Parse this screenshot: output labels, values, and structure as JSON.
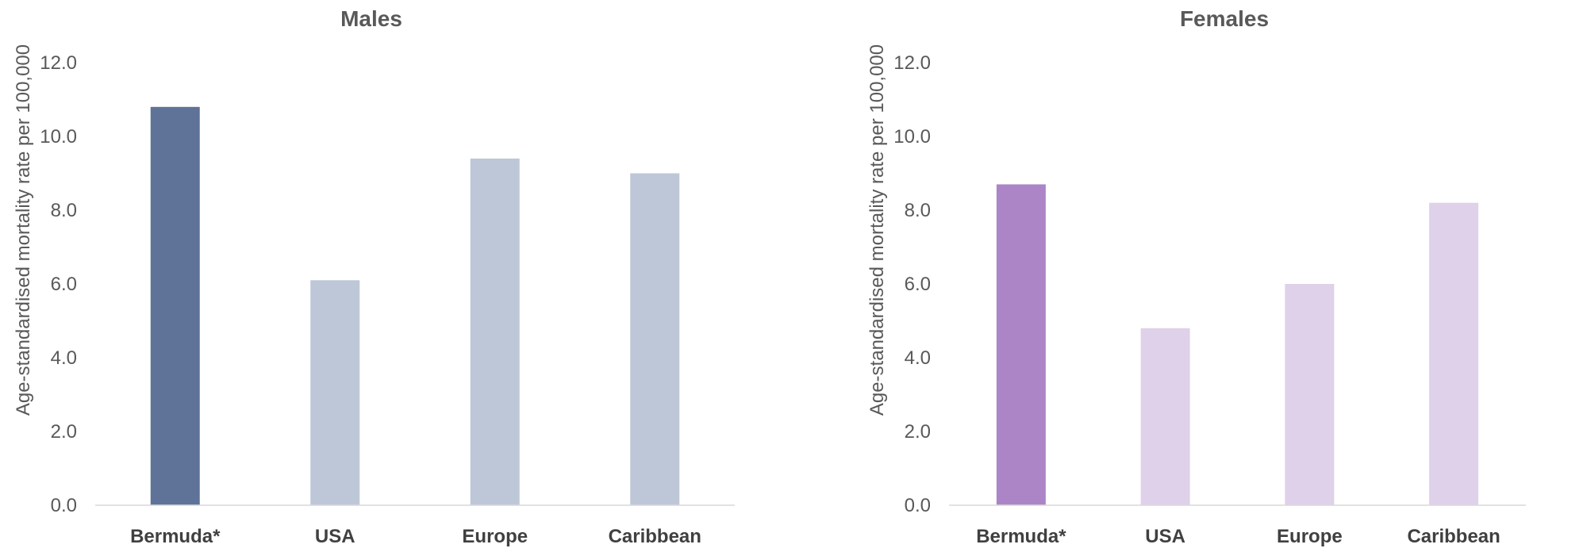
{
  "chart_data": [
    {
      "type": "bar",
      "title": "Males",
      "ylabel": "Age-standardised mortality rate per 100,000",
      "xlabel": "",
      "categories": [
        "Bermuda*",
        "USA",
        "Europe",
        "Caribbean"
      ],
      "values": [
        10.8,
        6.1,
        9.4,
        9.0
      ],
      "ylim": [
        0,
        12
      ],
      "yticks": [
        "0.0",
        "2.0",
        "4.0",
        "6.0",
        "8.0",
        "10.0",
        "12.0"
      ],
      "bar_colors": [
        "#5f7398",
        "#bdc7d8",
        "#bdc7d8",
        "#bdc7d8"
      ],
      "grid": false
    },
    {
      "type": "bar",
      "title": "Females",
      "ylabel": "Age-standardised mortality rate per 100,000",
      "xlabel": "",
      "categories": [
        "Bermuda*",
        "USA",
        "Europe",
        "Caribbean"
      ],
      "values": [
        8.7,
        4.8,
        6.0,
        8.2
      ],
      "ylim": [
        0,
        12
      ],
      "yticks": [
        "0.0",
        "2.0",
        "4.0",
        "6.0",
        "8.0",
        "10.0",
        "12.0"
      ],
      "bar_colors": [
        "#ab85c5",
        "#dfd1e9",
        "#dfd1e9",
        "#dfd1e9"
      ],
      "grid": false
    }
  ]
}
